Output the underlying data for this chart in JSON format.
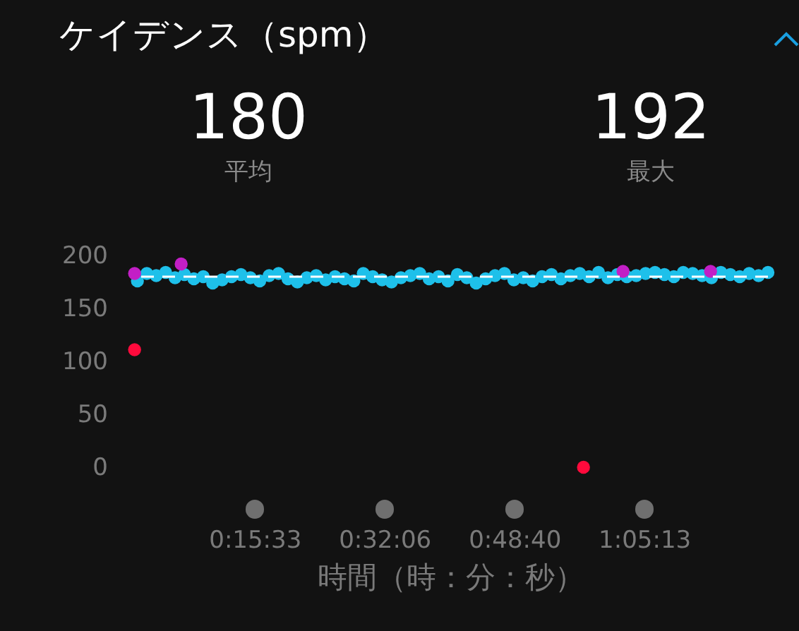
{
  "chart_data": {
    "type": "scatter",
    "title": "ケイデンス（spm）",
    "xlabel": "時間（時：分：秒）",
    "annotations": [
      "180",
      "平均",
      "192",
      "最大"
    ],
    "xlim": [
      0,
      1.35
    ],
    "ylim": [
      0,
      200
    ],
    "yticks": [
      0,
      50,
      100,
      150,
      200
    ],
    "xticks": [
      {
        "value": 0.25917,
        "label": "0:15:33"
      },
      {
        "value": 0.535,
        "label": "0:32:06"
      },
      {
        "value": 0.81111,
        "label": "0:48:40"
      },
      {
        "value": 1.08694,
        "label": "1:05:13"
      }
    ],
    "marker": "circle",
    "ref_lines": [
      {
        "axis": "y",
        "value": 180,
        "color": "#ffffff",
        "line_style": "dashed"
      }
    ],
    "series": [
      {
        "color": "#1ec0ea",
        "x": [
          0.01,
          0.03,
          0.05,
          0.07,
          0.09,
          0.11,
          0.13,
          0.15,
          0.17,
          0.19,
          0.21,
          0.23,
          0.25,
          0.27,
          0.29,
          0.31,
          0.33,
          0.35,
          0.37,
          0.39,
          0.41,
          0.43,
          0.45,
          0.47,
          0.49,
          0.51,
          0.53,
          0.55,
          0.57,
          0.59,
          0.61,
          0.63,
          0.65,
          0.67,
          0.69,
          0.71,
          0.73,
          0.75,
          0.77,
          0.79,
          0.81,
          0.83,
          0.85,
          0.87,
          0.89,
          0.91,
          0.93,
          0.95,
          0.97,
          0.99,
          1.01,
          1.03,
          1.05,
          1.07,
          1.09,
          1.11,
          1.13,
          1.15,
          1.17,
          1.19,
          1.21,
          1.23,
          1.25,
          1.27,
          1.29,
          1.31,
          1.33,
          1.35
        ],
        "values": [
          176,
          183,
          181,
          184,
          179,
          182,
          178,
          180,
          174,
          177,
          180,
          182,
          179,
          176,
          181,
          183,
          178,
          175,
          179,
          181,
          177,
          180,
          178,
          176,
          183,
          180,
          177,
          175,
          179,
          181,
          183,
          178,
          180,
          176,
          182,
          179,
          174,
          178,
          181,
          183,
          177,
          179,
          176,
          180,
          182,
          178,
          181,
          183,
          180,
          184,
          179,
          182,
          180,
          181,
          183,
          184,
          182,
          180,
          184,
          183,
          181,
          179,
          184,
          182,
          180,
          183,
          181,
          184
        ]
      },
      {
        "color": "#c21fc6",
        "x": [
          0.004,
          0.103,
          1.042,
          1.228
        ],
        "values": [
          183,
          192,
          185,
          185
        ]
      },
      {
        "color": "#ff0a3c",
        "x": [
          0.004,
          0.958
        ],
        "values": [
          111,
          0
        ]
      }
    ]
  }
}
